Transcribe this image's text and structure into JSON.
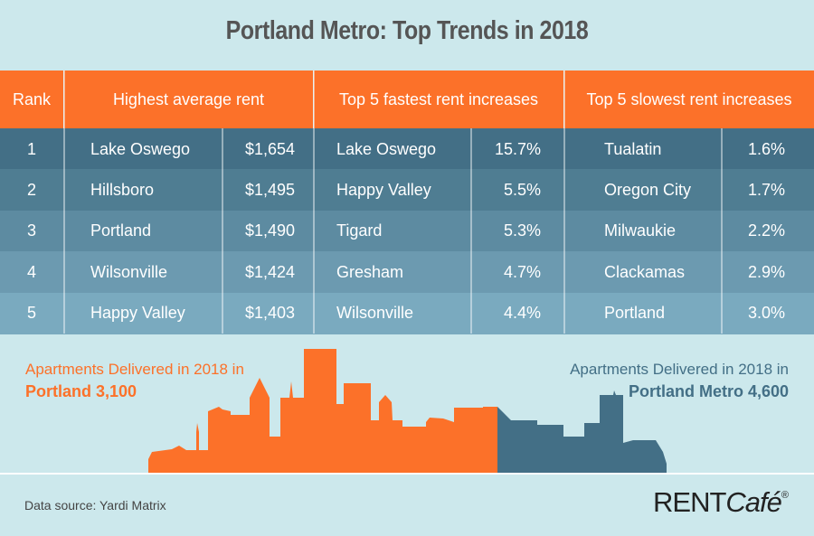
{
  "title": "Portland Metro: Top Trends in 2018",
  "colors": {
    "background": "#cce8ec",
    "orange": "#fc7129",
    "slate": "#436f86"
  },
  "table": {
    "headers": [
      "Rank",
      "Highest average rent",
      "Top 5 fastest rent increases",
      "Top 5 slowest rent increases"
    ],
    "rows": [
      {
        "rank": "1",
        "rent_city": "Lake Oswego",
        "rent": "$1,654",
        "fast_city": "Lake Oswego",
        "fast": "15.7%",
        "slow_city": "Tualatin",
        "slow": "1.6%"
      },
      {
        "rank": "2",
        "rent_city": "Hillsboro",
        "rent": "$1,495",
        "fast_city": "Happy Valley",
        "fast": "5.5%",
        "slow_city": "Oregon City",
        "slow": "1.7%"
      },
      {
        "rank": "3",
        "rent_city": "Portland",
        "rent": "$1,490",
        "fast_city": "Tigard",
        "fast": "5.3%",
        "slow_city": "Milwaukie",
        "slow": "2.2%"
      },
      {
        "rank": "4",
        "rent_city": "Wilsonville",
        "rent": "$1,424",
        "fast_city": "Gresham",
        "fast": "4.7%",
        "slow_city": "Clackamas",
        "slow": "2.9%"
      },
      {
        "rank": "5",
        "rent_city": "Happy Valley",
        "rent": "$1,403",
        "fast_city": "Wilsonville",
        "fast": "4.4%",
        "slow_city": "Portland",
        "slow": "3.0%"
      }
    ]
  },
  "delivered": {
    "left_label": "Apartments Delivered in 2018 in",
    "left_value": "Portland 3,100",
    "right_label": "Apartments Delivered in 2018 in",
    "right_value": "Portland Metro 4,600"
  },
  "footer": {
    "source": "Data source:  Yardi Matrix",
    "logo_a": "RENT",
    "logo_b": "Café",
    "logo_reg": "®"
  }
}
